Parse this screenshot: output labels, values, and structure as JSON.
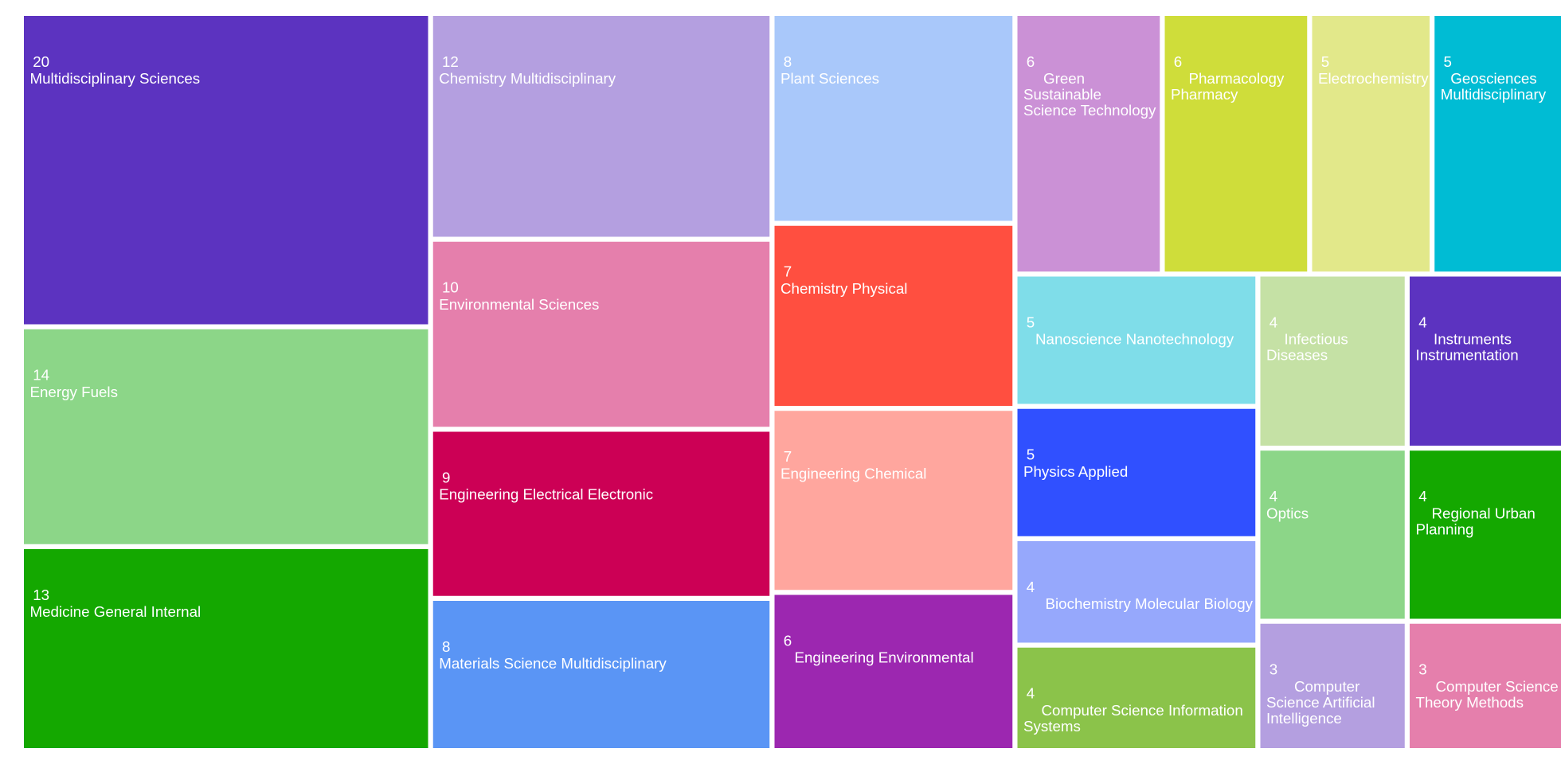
{
  "chart_data": {
    "type": "treemap",
    "title": "",
    "items": [
      {
        "label": "Multidisciplinary Sciences",
        "value": 20,
        "color": "#5c33c0"
      },
      {
        "label": "Energy Fuels",
        "value": 14,
        "color": "#8cd688"
      },
      {
        "label": "Medicine General Internal",
        "value": 13,
        "color": "#14a800"
      },
      {
        "label": "Chemistry Multidisciplinary",
        "value": 12,
        "color": "#b49fe0"
      },
      {
        "label": "Environmental Sciences",
        "value": 10,
        "color": "#e57fac"
      },
      {
        "label": "Engineering Electrical Electronic",
        "value": 9,
        "color": "#cc0055"
      },
      {
        "label": "Materials Science Multidisciplinary",
        "value": 8,
        "color": "#5a95f5"
      },
      {
        "label": "Plant Sciences",
        "value": 8,
        "color": "#a9c8fa"
      },
      {
        "label": "Chemistry Physical",
        "value": 7,
        "color": "#ff4f40"
      },
      {
        "label": "Engineering Chemical",
        "value": 7,
        "color": "#ffa69e"
      },
      {
        "label": "Engineering Environmental",
        "value": 6,
        "color": "#9c27b0"
      },
      {
        "label": "Green Sustainable Science Technology",
        "value": 6,
        "color": "#cb91d6"
      },
      {
        "label": "Pharmacology Pharmacy",
        "value": 6,
        "color": "#cfdd3a"
      },
      {
        "label": "Electrochemistry",
        "value": 5,
        "color": "#e2e88a"
      },
      {
        "label": "Geosciences Multidisciplinary",
        "value": 5,
        "color": "#00bcd4"
      },
      {
        "label": "Nanoscience Nanotechnology",
        "value": 5,
        "color": "#7fdde9"
      },
      {
        "label": "Physics Applied",
        "value": 5,
        "color": "#3050ff"
      },
      {
        "label": "Biochemistry Molecular Biology",
        "value": 4,
        "color": "#96a8fc"
      },
      {
        "label": "Computer Science Information Systems",
        "value": 4,
        "color": "#8bc34a"
      },
      {
        "label": "Infectious Diseases",
        "value": 4,
        "color": "#c5e1a5"
      },
      {
        "label": "Optics",
        "value": 4,
        "color": "#8cd688"
      },
      {
        "label": "Computer Science Artificial Intelligence",
        "value": 3,
        "color": "#b49fe0"
      },
      {
        "label": "Instruments Instrumentation",
        "value": 4,
        "color": "#5c33c0"
      },
      {
        "label": "Regional Urban Planning",
        "value": 4,
        "color": "#14a800"
      },
      {
        "label": "Computer Science Theory Methods",
        "value": 3,
        "color": "#e57fac"
      }
    ]
  }
}
